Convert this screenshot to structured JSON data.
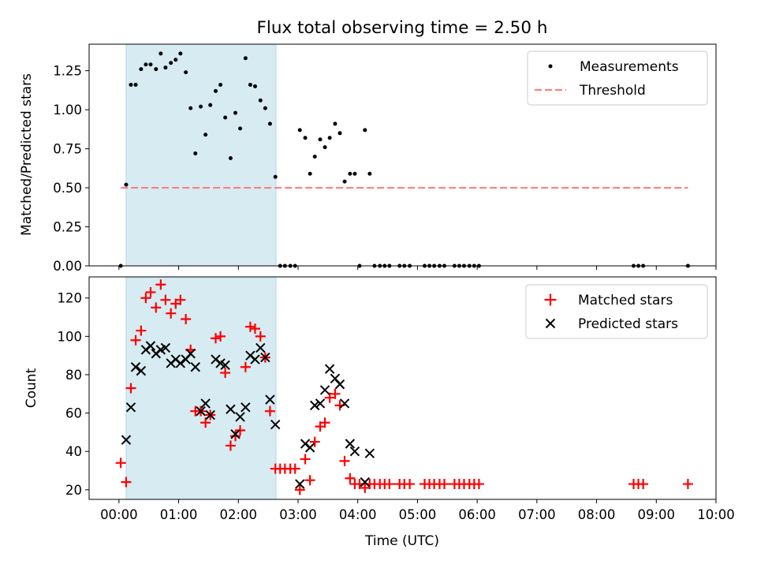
{
  "chart_data": [
    {
      "type": "scatter",
      "title": "Flux total observing time = 2.50 h",
      "ylabel": "Matched/Predicted stars",
      "xlabel": "",
      "xlim": [
        -0.5,
        10.0
      ],
      "ylim": [
        0.0,
        1.42
      ],
      "yticks": [
        0.0,
        0.25,
        0.5,
        0.75,
        1.0,
        1.25
      ],
      "ytick_labels": [
        "0.00",
        "0.25",
        "0.50",
        "0.75",
        "1.00",
        "1.25"
      ],
      "highlight_span": [
        0.12,
        2.63
      ],
      "legend": [
        "Measurements",
        "Threshold"
      ],
      "legend_position": "top-right",
      "series": [
        {
          "name": "Measurements",
          "points": [
            [
              0.03,
              0.0
            ],
            [
              0.12,
              0.52
            ],
            [
              0.2,
              1.16
            ],
            [
              0.28,
              1.16
            ],
            [
              0.37,
              1.26
            ],
            [
              0.45,
              1.29
            ],
            [
              0.53,
              1.29
            ],
            [
              0.62,
              1.26
            ],
            [
              0.7,
              1.36
            ],
            [
              0.78,
              1.27
            ],
            [
              0.87,
              1.3
            ],
            [
              0.95,
              1.32
            ],
            [
              1.03,
              1.36
            ],
            [
              1.12,
              1.24
            ],
            [
              1.2,
              1.01
            ],
            [
              1.28,
              0.72
            ],
            [
              1.37,
              1.02
            ],
            [
              1.45,
              0.84
            ],
            [
              1.53,
              1.03
            ],
            [
              1.62,
              1.12
            ],
            [
              1.7,
              1.16
            ],
            [
              1.78,
              0.95
            ],
            [
              1.87,
              0.69
            ],
            [
              1.95,
              0.98
            ],
            [
              2.03,
              0.88
            ],
            [
              2.12,
              1.33
            ],
            [
              2.2,
              1.16
            ],
            [
              2.28,
              1.15
            ],
            [
              2.37,
              1.06
            ],
            [
              2.45,
              1.01
            ],
            [
              2.53,
              0.91
            ],
            [
              2.62,
              0.57
            ],
            [
              2.7,
              0.0
            ],
            [
              2.78,
              0.0
            ],
            [
              2.87,
              0.0
            ],
            [
              2.95,
              0.0
            ],
            [
              3.03,
              0.87
            ],
            [
              3.12,
              0.82
            ],
            [
              3.2,
              0.59
            ],
            [
              3.28,
              0.7
            ],
            [
              3.37,
              0.81
            ],
            [
              3.45,
              0.76
            ],
            [
              3.53,
              0.82
            ],
            [
              3.62,
              0.91
            ],
            [
              3.7,
              0.85
            ],
            [
              3.78,
              0.54
            ],
            [
              3.87,
              0.59
            ],
            [
              3.95,
              0.59
            ],
            [
              4.03,
              0.0
            ],
            [
              4.12,
              0.87
            ],
            [
              4.2,
              0.59
            ],
            [
              4.28,
              0.0
            ],
            [
              4.37,
              0.0
            ],
            [
              4.45,
              0.0
            ],
            [
              4.53,
              0.0
            ],
            [
              4.7,
              0.0
            ],
            [
              4.78,
              0.0
            ],
            [
              4.87,
              0.0
            ],
            [
              5.12,
              0.0
            ],
            [
              5.2,
              0.0
            ],
            [
              5.28,
              0.0
            ],
            [
              5.37,
              0.0
            ],
            [
              5.45,
              0.0
            ],
            [
              5.62,
              0.0
            ],
            [
              5.7,
              0.0
            ],
            [
              5.78,
              0.0
            ],
            [
              5.87,
              0.0
            ],
            [
              5.95,
              0.0
            ],
            [
              6.03,
              0.0
            ],
            [
              8.62,
              0.0
            ],
            [
              8.7,
              0.0
            ],
            [
              8.78,
              0.0
            ],
            [
              9.53,
              0.0
            ]
          ]
        },
        {
          "name": "Threshold",
          "line": [
            [
              0.03,
              0.5
            ],
            [
              9.53,
              0.5
            ]
          ]
        }
      ]
    },
    {
      "type": "scatter",
      "title": "",
      "ylabel": "Count",
      "xlabel": "Time (UTC)",
      "xlim": [
        -0.5,
        10.0
      ],
      "ylim": [
        15,
        131
      ],
      "yticks": [
        20,
        40,
        60,
        80,
        100,
        120
      ],
      "ytick_labels": [
        "20",
        "40",
        "60",
        "80",
        "100",
        "120"
      ],
      "xticks": [
        0,
        1,
        2,
        3,
        4,
        5,
        6,
        7,
        8,
        9,
        10
      ],
      "xtick_labels": [
        "00:00",
        "01:00",
        "02:00",
        "03:00",
        "04:00",
        "05:00",
        "06:00",
        "07:00",
        "08:00",
        "09:00",
        "10:00"
      ],
      "highlight_span": [
        0.12,
        2.63
      ],
      "legend": [
        "Matched stars",
        "Predicted stars"
      ],
      "legend_position": "top-right",
      "series": [
        {
          "name": "Matched stars",
          "points": [
            [
              0.03,
              34
            ],
            [
              0.12,
              24
            ],
            [
              0.2,
              73
            ],
            [
              0.28,
              98
            ],
            [
              0.37,
              103
            ],
            [
              0.45,
              120
            ],
            [
              0.53,
              123
            ],
            [
              0.62,
              115
            ],
            [
              0.7,
              127
            ],
            [
              0.78,
              119
            ],
            [
              0.87,
              112
            ],
            [
              0.95,
              117
            ],
            [
              1.03,
              119
            ],
            [
              1.12,
              109
            ],
            [
              1.2,
              93
            ],
            [
              1.28,
              61
            ],
            [
              1.37,
              61
            ],
            [
              1.45,
              55
            ],
            [
              1.53,
              59
            ],
            [
              1.62,
              99
            ],
            [
              1.7,
              100
            ],
            [
              1.78,
              81
            ],
            [
              1.87,
              43
            ],
            [
              1.95,
              48
            ],
            [
              2.03,
              51
            ],
            [
              2.12,
              84
            ],
            [
              2.2,
              105
            ],
            [
              2.28,
              104
            ],
            [
              2.37,
              100
            ],
            [
              2.45,
              89
            ],
            [
              2.53,
              61
            ],
            [
              2.62,
              31
            ],
            [
              2.7,
              31
            ],
            [
              2.78,
              31
            ],
            [
              2.87,
              31
            ],
            [
              2.95,
              31
            ],
            [
              3.03,
              20
            ],
            [
              3.12,
              36
            ],
            [
              3.2,
              25
            ],
            [
              3.28,
              45
            ],
            [
              3.37,
              53
            ],
            [
              3.45,
              55
            ],
            [
              3.53,
              68
            ],
            [
              3.62,
              70
            ],
            [
              3.7,
              64
            ],
            [
              3.78,
              35
            ],
            [
              3.87,
              26
            ],
            [
              3.95,
              23
            ],
            [
              4.03,
              23
            ],
            [
              4.12,
              21
            ],
            [
              4.2,
              23
            ],
            [
              4.28,
              23
            ],
            [
              4.37,
              23
            ],
            [
              4.45,
              23
            ],
            [
              4.53,
              23
            ],
            [
              4.7,
              23
            ],
            [
              4.78,
              23
            ],
            [
              4.87,
              23
            ],
            [
              5.12,
              23
            ],
            [
              5.2,
              23
            ],
            [
              5.28,
              23
            ],
            [
              5.37,
              23
            ],
            [
              5.45,
              23
            ],
            [
              5.62,
              23
            ],
            [
              5.7,
              23
            ],
            [
              5.78,
              23
            ],
            [
              5.87,
              23
            ],
            [
              5.95,
              23
            ],
            [
              6.03,
              23
            ],
            [
              8.62,
              23
            ],
            [
              8.7,
              23
            ],
            [
              8.78,
              23
            ],
            [
              9.53,
              23
            ]
          ]
        },
        {
          "name": "Predicted stars",
          "points": [
            [
              0.12,
              46
            ],
            [
              0.2,
              63
            ],
            [
              0.28,
              84
            ],
            [
              0.37,
              82
            ],
            [
              0.45,
              93
            ],
            [
              0.53,
              95
            ],
            [
              0.62,
              91
            ],
            [
              0.7,
              93
            ],
            [
              0.78,
              94
            ],
            [
              0.87,
              86
            ],
            [
              0.95,
              88
            ],
            [
              1.03,
              86
            ],
            [
              1.12,
              88
            ],
            [
              1.2,
              91
            ],
            [
              1.28,
              84
            ],
            [
              1.37,
              61
            ],
            [
              1.45,
              65
            ],
            [
              1.53,
              59
            ],
            [
              1.62,
              88
            ],
            [
              1.7,
              86
            ],
            [
              1.78,
              85
            ],
            [
              1.87,
              62
            ],
            [
              1.95,
              49
            ],
            [
              2.03,
              58
            ],
            [
              2.12,
              63
            ],
            [
              2.2,
              90
            ],
            [
              2.28,
              88
            ],
            [
              2.37,
              94
            ],
            [
              2.45,
              89
            ],
            [
              2.53,
              67
            ],
            [
              2.62,
              54
            ],
            [
              3.03,
              23
            ],
            [
              3.12,
              44
            ],
            [
              3.2,
              42
            ],
            [
              3.28,
              64
            ],
            [
              3.37,
              65
            ],
            [
              3.45,
              72
            ],
            [
              3.53,
              83
            ],
            [
              3.62,
              78
            ],
            [
              3.7,
              75
            ],
            [
              3.78,
              65
            ],
            [
              3.87,
              44
            ],
            [
              3.95,
              40
            ],
            [
              4.12,
              24
            ],
            [
              4.2,
              39
            ]
          ]
        }
      ]
    }
  ]
}
